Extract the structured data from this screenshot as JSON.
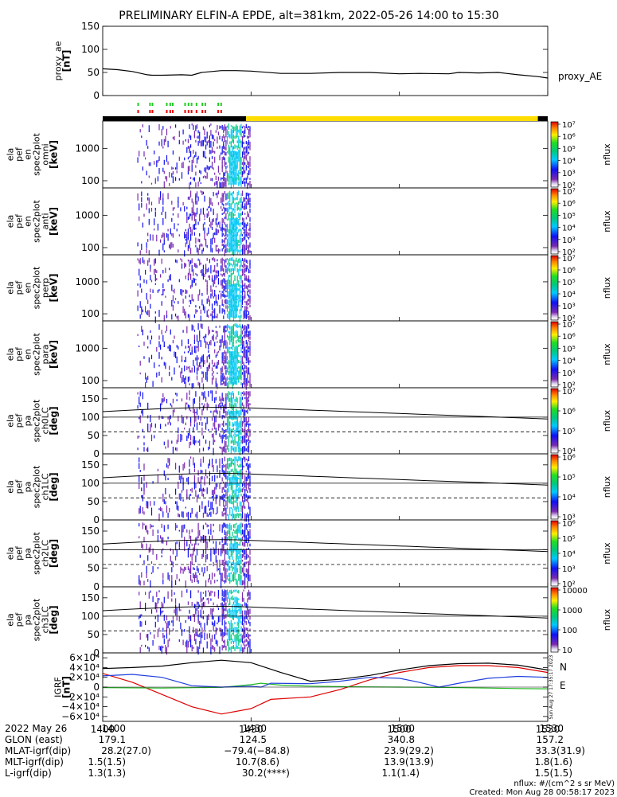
{
  "chart_data": {
    "title": "PRELIMINARY ELFIN-A EPDE, alt=381km, 2022-05-26 14:00 to 15:30",
    "xlim": [
      "14:00",
      "15:30"
    ],
    "panels": [
      {
        "id": "proxy_ae",
        "type": "line",
        "ylabel": "proxy_ae",
        "yunit": "[nT]",
        "ylim": [
          0,
          150
        ],
        "yticks": [
          "0",
          "50",
          "100",
          "150"
        ],
        "legend": "proxy_AE",
        "series": [
          {
            "x": [
              0,
              3,
              6,
              9,
              10,
              12,
              16,
              18,
              20,
              24,
              27,
              30,
              36,
              42,
              48,
              54,
              60,
              64,
              70,
              72,
              76,
              80,
              84,
              88,
              90
            ],
            "y": [
              58,
              56,
              52,
              45,
              44,
              44,
              45,
              44,
              50,
              54,
              54,
              53,
              48,
              48,
              50,
              50,
              47,
              48,
              47,
              50,
              49,
              50,
              45,
              41,
              38
            ]
          }
        ]
      },
      {
        "id": "en_omni",
        "type": "heatmap",
        "ylabel": [
          "ela",
          "pef",
          "en",
          "spec2plot",
          "omni"
        ],
        "yunit": "[keV]",
        "ylim_log": [
          60,
          7000
        ],
        "yticks": [
          "100",
          "1000"
        ],
        "zlabel": "nflux",
        "zscale": "log",
        "zticks": [
          "10²",
          "10³",
          "10⁴",
          "10⁵",
          "10⁶",
          "10⁷"
        ]
      },
      {
        "id": "en_anti",
        "type": "heatmap",
        "ylabel": [
          "ela",
          "pef",
          "en",
          "spec2plot",
          "anti"
        ],
        "yunit": "[keV]",
        "ylim_log": [
          60,
          7000
        ],
        "yticks": [
          "100",
          "1000"
        ],
        "zlabel": "nflux",
        "zscale": "log",
        "zticks": [
          "10²",
          "10³",
          "10⁴",
          "10⁵",
          "10⁶",
          "10⁷"
        ]
      },
      {
        "id": "en_perp",
        "type": "heatmap",
        "ylabel": [
          "ela",
          "pef",
          "en",
          "spec2plot",
          "perp"
        ],
        "yunit": "[keV]",
        "ylim_log": [
          60,
          7000
        ],
        "yticks": [
          "100",
          "1000"
        ],
        "zlabel": "nflux",
        "zscale": "log",
        "zticks": [
          "10²",
          "10³",
          "10⁴",
          "10⁵",
          "10⁶",
          "10⁷"
        ]
      },
      {
        "id": "en_para",
        "type": "heatmap",
        "ylabel": [
          "ela",
          "pef",
          "en",
          "spec2plot",
          "para"
        ],
        "yunit": "[keV]",
        "ylim_log": [
          60,
          7000
        ],
        "yticks": [
          "100",
          "1000"
        ],
        "zlabel": "nflux",
        "zscale": "log",
        "zticks": [
          "10²",
          "10³",
          "10⁴",
          "10⁵",
          "10⁶",
          "10⁷"
        ]
      },
      {
        "id": "pa_ch0",
        "type": "heatmap",
        "ylabel": [
          "ela",
          "pef",
          "pa",
          "spec2plot",
          "ch0LC"
        ],
        "yunit": "[deg]",
        "ylim": [
          0,
          180
        ],
        "yticks": [
          "0",
          "50",
          "100",
          "150"
        ],
        "zlabel": "nflux",
        "zticks": [
          "10⁴",
          "10⁵",
          "10⁶",
          "10⁷"
        ]
      },
      {
        "id": "pa_ch1",
        "type": "heatmap",
        "ylabel": [
          "ela",
          "pef",
          "pa",
          "spec2plot",
          "ch1LC"
        ],
        "yunit": "[deg]",
        "ylim": [
          0,
          180
        ],
        "yticks": [
          "0",
          "50",
          "100",
          "150"
        ],
        "zlabel": "nflux",
        "zticks": [
          "10³",
          "10⁴",
          "10⁵",
          "10⁶"
        ]
      },
      {
        "id": "pa_ch2",
        "type": "heatmap",
        "ylabel": [
          "ela",
          "pef",
          "pa",
          "spec2plot",
          "ch2LC"
        ],
        "yunit": "[deg]",
        "ylim": [
          0,
          180
        ],
        "yticks": [
          "0",
          "50",
          "100",
          "150"
        ],
        "zlabel": "nflux",
        "zticks": [
          "10²",
          "10³",
          "10⁴",
          "10⁵",
          "10⁶"
        ]
      },
      {
        "id": "pa_ch3",
        "type": "heatmap",
        "ylabel": [
          "ela",
          "pef",
          "pa",
          "spec2plot",
          "ch3LC"
        ],
        "yunit": "[deg]",
        "ylim": [
          0,
          180
        ],
        "yticks": [
          "0",
          "50",
          "100",
          "150"
        ],
        "zlabel": "nflux",
        "zticks": [
          "10",
          "100",
          "1000",
          "10000"
        ]
      },
      {
        "id": "igrf",
        "type": "line",
        "ylabel": "IGRF",
        "yunit": "[nT]",
        "ylim": [
          -70000,
          70000
        ],
        "yticks": [
          "−6×10⁴",
          "−4×10⁴",
          "−2×10⁴",
          "0",
          "2×10⁴",
          "4×10⁴",
          "6×10⁴"
        ],
        "side_note": "Sun Aug 27 17:35:17 2023",
        "series": [
          {
            "name": "N",
            "color": "#dd0000",
            "x": [
              0,
              6,
              12,
              18,
              24,
              30,
              34,
              42,
              48,
              54,
              60,
              66,
              72,
              78,
              84,
              90
            ],
            "y": [
              28000,
              10000,
              -15000,
              -40000,
              -55000,
              -44000,
              -25000,
              -20000,
              -5000,
              15000,
              30000,
              40000,
              44000,
              44000,
              40000,
              30000
            ]
          },
          {
            "name": "E",
            "color": "#22bb22",
            "x": [
              0,
              12,
              24,
              30,
              32,
              36,
              42,
              48,
              54,
              60,
              66,
              72,
              78,
              84,
              90
            ],
            "y": [
              -1000,
              -2000,
              -500,
              5000,
              8000,
              4000,
              2000,
              1000,
              500,
              0,
              -500,
              -1000,
              -2000,
              -3000,
              -3500
            ]
          },
          {
            "name": "",
            "color": "#1f3fdd",
            "x": [
              0,
              6,
              12,
              18,
              24,
              30,
              32,
              34,
              42,
              48,
              54,
              60,
              64,
              68,
              72,
              78,
              84,
              90
            ],
            "y": [
              23000,
              26000,
              20000,
              3000,
              0,
              2000,
              0,
              8000,
              7000,
              12000,
              20000,
              18000,
              10000,
              0,
              8000,
              18000,
              22000,
              20000
            ]
          },
          {
            "name": "",
            "color": "#000000",
            "x": [
              0,
              6,
              12,
              18,
              24,
              30,
              36,
              42,
              48,
              54,
              60,
              66,
              72,
              78,
              84,
              90
            ],
            "y": [
              38000,
              40000,
              43000,
              50000,
              55000,
              50000,
              30000,
              12000,
              16000,
              24000,
              35000,
              44000,
              48000,
              49000,
              45000,
              35000
            ]
          }
        ]
      }
    ],
    "x_tick_labels": [
      "1400",
      "1430",
      "1500",
      "1530"
    ],
    "footer": [
      {
        "label": "2022 May 26",
        "values": [
          "1400",
          "1430",
          "1500",
          "1530"
        ]
      },
      {
        "label": "GLON (east)",
        "values": [
          "179.1",
          "124.5",
          "340.8",
          "157.2"
        ]
      },
      {
        "label": "MLAT-igrf(dip)",
        "values": [
          "28.2(27.0)",
          "−79.4(−84.8)",
          "23.9(29.2)",
          "33.3(31.9)"
        ]
      },
      {
        "label": "MLT-igrf(dip)",
        "values": [
          "1.5(1.5)",
          "10.7(8.6)",
          "13.9(13.9)",
          "1.8(1.6)"
        ]
      },
      {
        "label": "L-igrf(dip)",
        "values": [
          "1.3(1.3)",
          "30.2(****)",
          "1.1(1.4)",
          "1.5(1.5)"
        ]
      }
    ],
    "notes": [
      "nflux: #/(cm^2 s sr MeV)",
      "Created: Mon Aug 28 00:58:17 2023"
    ]
  }
}
